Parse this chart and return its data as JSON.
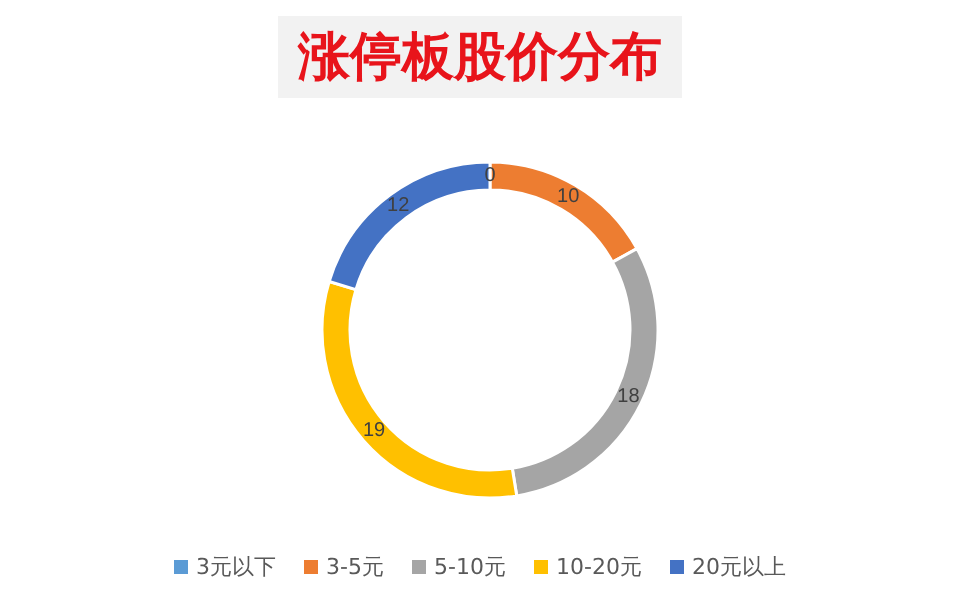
{
  "chart_data": {
    "type": "donut",
    "title": "涨停板股价分布",
    "categories": [
      "3元以下",
      "3-5元",
      "5-10元",
      "10-20元",
      "20元以上"
    ],
    "values": [
      0,
      10,
      18,
      19,
      12
    ],
    "colors": [
      "#5b9bd5",
      "#ed7d31",
      "#a5a5a5",
      "#ffc000",
      "#4472c4"
    ],
    "value_labels": [
      "0",
      "10",
      "18",
      "19",
      "12"
    ],
    "legend": "bottom"
  }
}
